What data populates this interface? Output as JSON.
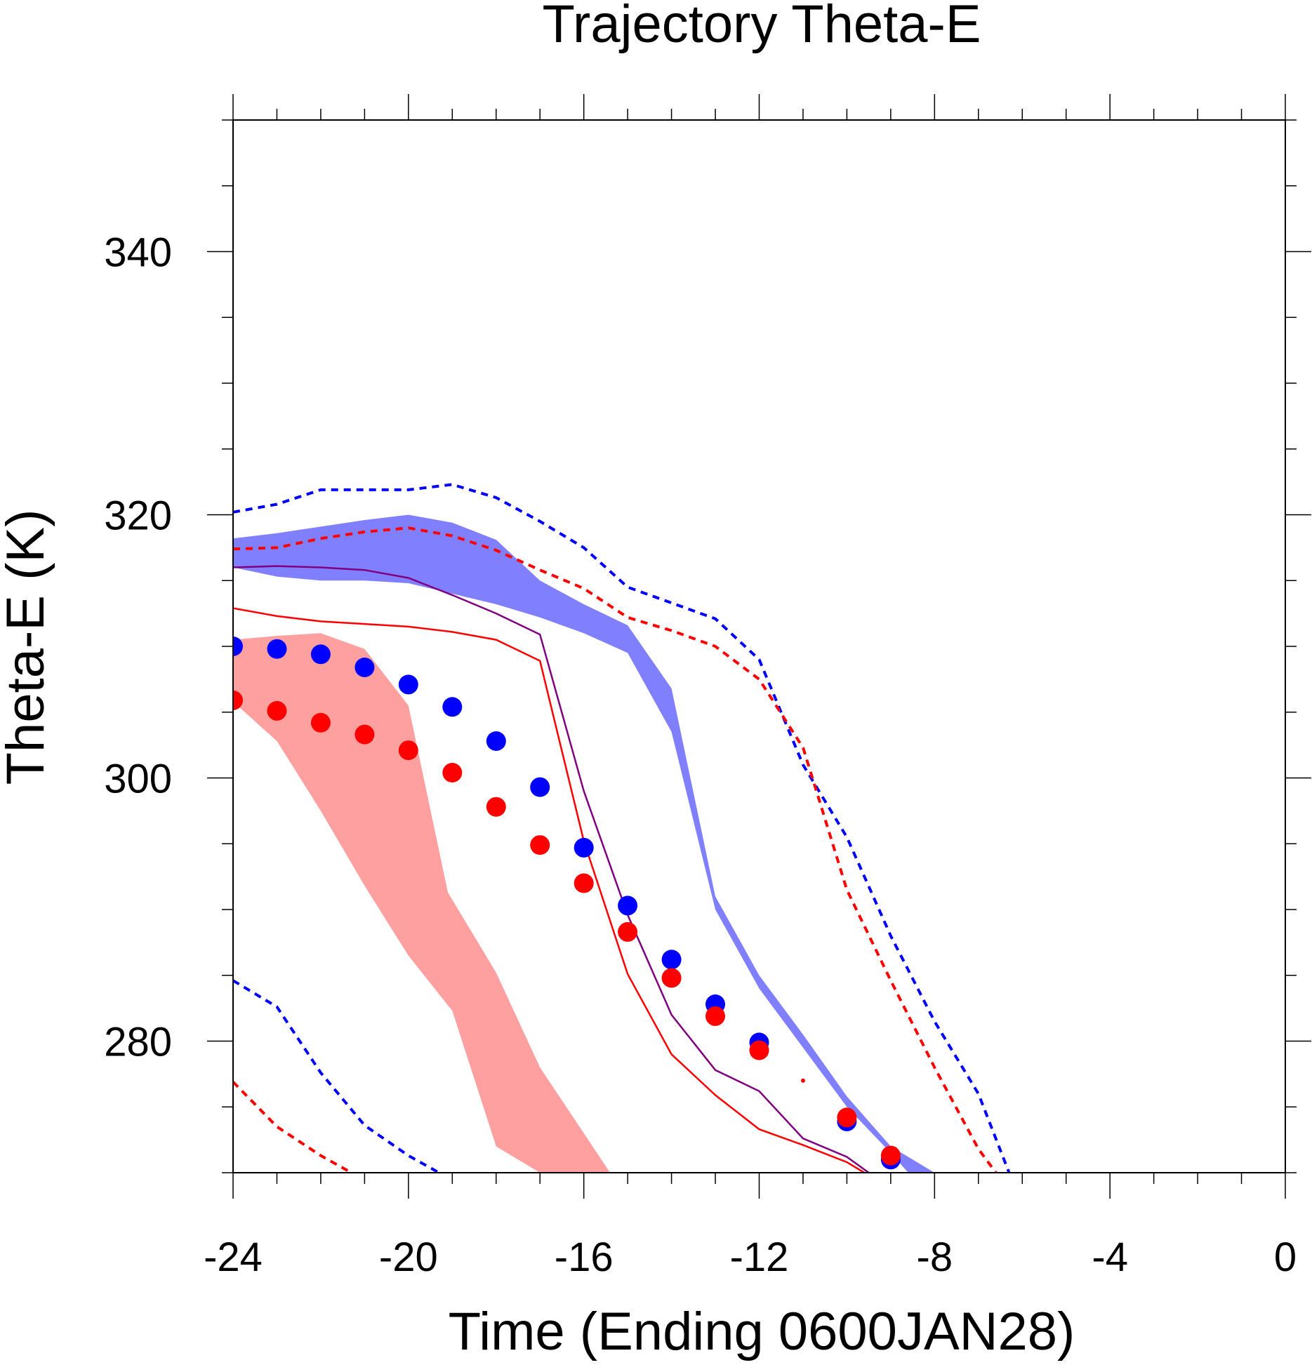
{
  "chart_data": {
    "type": "line",
    "title": "Trajectory Theta-E",
    "xlabel": "Time (Ending 0600JAN28)",
    "ylabel": "Theta-E (K)",
    "xlim": [
      -24,
      0
    ],
    "ylim": [
      270,
      350
    ],
    "x_ticks": [
      -24,
      -20,
      -16,
      -12,
      -8,
      -4,
      0
    ],
    "x_tick_labels": [
      "-24",
      "-20",
      "-16",
      "-12",
      "-8",
      "-4",
      "0"
    ],
    "y_ticks": [
      280,
      300,
      320,
      340
    ],
    "y_tick_labels": [
      "280",
      "300",
      "320",
      "340"
    ],
    "grid": false,
    "colors": {
      "blue": "#0000ff",
      "red": "#ff0000",
      "blue_fill": "#8080ff",
      "red_fill": "#ff8080",
      "overlap_fill": "#bf3f7f",
      "purple": "#800080"
    },
    "bands": [
      {
        "color": "blue",
        "upper": [
          [
            -24,
            318.2
          ],
          [
            -23,
            318.6
          ],
          [
            -22,
            319.1
          ],
          [
            -21,
            319.6
          ],
          [
            -20,
            320.0
          ],
          [
            -19,
            319.4
          ],
          [
            -18,
            318.1
          ],
          [
            -17,
            315.0
          ],
          [
            -16,
            313.2
          ],
          [
            -15,
            311.6
          ],
          [
            -14,
            306.8
          ],
          [
            -13,
            291.0
          ],
          [
            -12,
            285.0
          ],
          [
            -11,
            280.5
          ],
          [
            -10,
            275.8
          ],
          [
            -9,
            272.0
          ],
          [
            -8,
            270.0
          ]
        ],
        "lower": [
          [
            -24,
            316.0
          ],
          [
            -23,
            315.3
          ],
          [
            -22,
            315.0
          ],
          [
            -21,
            315.0
          ],
          [
            -20,
            314.8
          ],
          [
            -19,
            314.0
          ],
          [
            -18,
            313.2
          ],
          [
            -17,
            312.2
          ],
          [
            -16,
            311.0
          ],
          [
            -15,
            309.5
          ],
          [
            -14,
            303.5
          ],
          [
            -13,
            290.0
          ],
          [
            -12,
            284.0
          ],
          [
            -11,
            279.5
          ],
          [
            -10,
            275.0
          ],
          [
            -9,
            271.5
          ],
          [
            -8.6,
            270.0
          ]
        ]
      },
      {
        "color": "red",
        "upper": [
          [
            -24,
            310.5
          ],
          [
            -23,
            310.8
          ],
          [
            -22,
            311.0
          ],
          [
            -21,
            309.8
          ],
          [
            -20,
            305.5
          ],
          [
            -19.1,
            291.3
          ],
          [
            -18,
            285.2
          ],
          [
            -17,
            278.0
          ],
          [
            -16,
            273.0
          ],
          [
            -15.4,
            270.0
          ]
        ],
        "lower": [
          [
            -24,
            305.8
          ],
          [
            -23,
            302.8
          ],
          [
            -22,
            297.5
          ],
          [
            -21,
            291.8
          ],
          [
            -20,
            286.5
          ],
          [
            -19,
            282.3
          ],
          [
            -18,
            272.0
          ],
          [
            -17,
            270.0
          ]
        ]
      }
    ],
    "series": [
      {
        "name": "",
        "color": "blue",
        "style": "dashed",
        "points": [
          [
            -24,
            320.2
          ],
          [
            -23,
            320.8
          ],
          [
            -22,
            321.9
          ],
          [
            -21,
            321.9
          ],
          [
            -20,
            321.9
          ],
          [
            -19,
            322.3
          ],
          [
            -18,
            321.3
          ],
          [
            -17,
            319.5
          ],
          [
            -16,
            317.5
          ],
          [
            -15,
            314.5
          ],
          [
            -14,
            313.3
          ],
          [
            -13,
            312.1
          ],
          [
            -12,
            309.0
          ],
          [
            -11,
            301.0
          ],
          [
            -10,
            295.5
          ],
          [
            -9,
            288.0
          ],
          [
            -8,
            281.5
          ],
          [
            -7,
            276.0
          ],
          [
            -6.3,
            270.0
          ]
        ]
      },
      {
        "name": "",
        "color": "red",
        "style": "dashed",
        "points": [
          [
            -24,
            317.4
          ],
          [
            -23,
            317.5
          ],
          [
            -22,
            318.2
          ],
          [
            -21,
            318.7
          ],
          [
            -20,
            319.0
          ],
          [
            -19,
            318.4
          ],
          [
            -18,
            317.3
          ],
          [
            -17,
            315.8
          ],
          [
            -16,
            314.4
          ],
          [
            -15,
            312.2
          ],
          [
            -14,
            311.2
          ],
          [
            -13,
            310.0
          ],
          [
            -12,
            307.5
          ],
          [
            -11,
            302.3
          ],
          [
            -10,
            291.5
          ],
          [
            -9,
            284.6
          ],
          [
            -8,
            278.0
          ],
          [
            -7,
            271.8
          ],
          [
            -6.6,
            270.0
          ]
        ]
      },
      {
        "name": "",
        "color": "blue",
        "style": "dashed",
        "points": [
          [
            -24,
            284.6
          ],
          [
            -23,
            282.6
          ],
          [
            -22,
            277.6
          ],
          [
            -21,
            273.6
          ],
          [
            -20,
            271.3
          ],
          [
            -19.3,
            270.0
          ]
        ]
      },
      {
        "name": "",
        "color": "red",
        "style": "dashed",
        "points": [
          [
            -24,
            276.9
          ],
          [
            -23,
            273.5
          ],
          [
            -22,
            271.3
          ],
          [
            -21.3,
            270.0
          ]
        ]
      },
      {
        "name": "",
        "color": "purple",
        "style": "solid",
        "points": [
          [
            -24,
            316.0
          ],
          [
            -23,
            316.1
          ],
          [
            -22,
            316.0
          ],
          [
            -21,
            315.8
          ],
          [
            -20,
            315.2
          ],
          [
            -19,
            313.9
          ],
          [
            -18,
            312.5
          ],
          [
            -17,
            310.9
          ],
          [
            -16,
            299.0
          ],
          [
            -15,
            289.6
          ],
          [
            -14,
            282.0
          ],
          [
            -13,
            277.8
          ],
          [
            -12,
            276.2
          ],
          [
            -11,
            272.6
          ],
          [
            -10,
            271.2
          ],
          [
            -9.5,
            270.0
          ]
        ]
      },
      {
        "name": "",
        "color": "red",
        "style": "solid",
        "points": [
          [
            -24,
            312.9
          ],
          [
            -23,
            312.3
          ],
          [
            -22,
            311.9
          ],
          [
            -21,
            311.7
          ],
          [
            -20,
            311.5
          ],
          [
            -19,
            311.1
          ],
          [
            -18,
            310.5
          ],
          [
            -17,
            308.9
          ],
          [
            -16,
            295.2
          ],
          [
            -15,
            285.1
          ],
          [
            -14,
            279.0
          ],
          [
            -13,
            275.9
          ],
          [
            -12,
            273.3
          ],
          [
            -11,
            272.1
          ],
          [
            -10,
            270.8
          ],
          [
            -9.6,
            270.0
          ]
        ]
      },
      {
        "name": "",
        "color": "blue",
        "style": "dots",
        "points": [
          [
            -24,
            310.0
          ],
          [
            -23,
            309.8
          ],
          [
            -22,
            309.4
          ],
          [
            -21,
            308.4
          ],
          [
            -20,
            307.1
          ],
          [
            -19,
            305.4
          ],
          [
            -18,
            302.8
          ],
          [
            -17,
            299.3
          ],
          [
            -16,
            294.7
          ],
          [
            -15,
            290.3
          ],
          [
            -14,
            286.2
          ],
          [
            -13,
            282.8
          ],
          [
            -12,
            279.9
          ],
          [
            -10,
            273.9
          ],
          [
            -9,
            271.0
          ]
        ]
      },
      {
        "name": "",
        "color": "red",
        "style": "dots",
        "points": [
          [
            -24,
            305.9
          ],
          [
            -23,
            305.1
          ],
          [
            -22,
            304.2
          ],
          [
            -21,
            303.3
          ],
          [
            -20,
            302.1
          ],
          [
            -19,
            300.4
          ],
          [
            -18,
            297.8
          ],
          [
            -17,
            294.9
          ],
          [
            -16,
            292.0
          ],
          [
            -15,
            288.3
          ],
          [
            -14,
            284.8
          ],
          [
            -13,
            281.9
          ],
          [
            -12,
            279.3
          ],
          [
            -10,
            274.2
          ],
          [
            -9,
            271.3
          ]
        ]
      }
    ],
    "small_marks": [
      {
        "color": "red",
        "x": -11,
        "y": 277.0
      }
    ]
  }
}
